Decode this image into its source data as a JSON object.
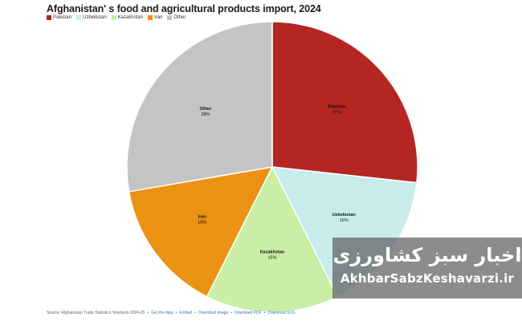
{
  "title": "Afghanistan' s food and agricultural products import, 2024",
  "legend": [
    {
      "label": "Pakistan",
      "color": "#b52522"
    },
    {
      "label": "Uzbekistan",
      "color": "#c8ecec"
    },
    {
      "label": "Kazakhstan",
      "color": "#c9eea6"
    },
    {
      "label": "Iran",
      "color": "#ea9212"
    },
    {
      "label": "Other",
      "color": "#c4c4c4"
    }
  ],
  "chart_data": {
    "type": "pie",
    "title": "Afghanistan' s food and agricultural products import, 2024",
    "legend_position": "top-left",
    "slices": [
      {
        "label": "Pakistan",
        "value": 27,
        "display": "27%",
        "color": "#b52522"
      },
      {
        "label": "Uzbekistan",
        "value": 16,
        "display": "16%",
        "color": "#c8ecec"
      },
      {
        "label": "Kazakhstan",
        "value": 15,
        "display": "15%",
        "color": "#c9eea6"
      },
      {
        "label": "Iran",
        "value": 15,
        "display": "15%",
        "color": "#ea9212"
      },
      {
        "label": "Other",
        "value": 28,
        "display": "28%",
        "color": "#c4c4c4"
      }
    ]
  },
  "footer": {
    "source": "Source: Afghanistan Trade Statistics Yearbook 2024-25",
    "links": [
      "Get the data",
      "Embed",
      "Download image",
      "Download PDF",
      "Download SVG"
    ],
    "separator": "•"
  },
  "watermark": {
    "persian": "اخبار سبز کشاورزی",
    "url": "AkhbarSabzKeshavarzi.ir"
  }
}
